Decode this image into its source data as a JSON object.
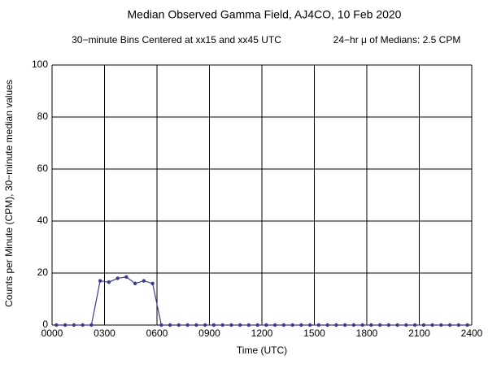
{
  "chart_data": {
    "type": "line",
    "title": "Median Observed Gamma Field, AJ4CO, 10 Feb 2020",
    "subtitle": "30−minute Bins Centered at xx15 and xx45 UTC",
    "annotation": "24−hr μ of Medians: 2.5 CPM",
    "x_label": "Time (UTC)",
    "y_label": "Counts per Minute (CPM), 30−minute median values",
    "x": [
      0.25,
      0.75,
      1.25,
      1.75,
      2.25,
      2.75,
      3.25,
      3.75,
      4.25,
      4.75,
      5.25,
      5.75,
      6.25,
      6.75,
      7.25,
      7.75,
      8.25,
      8.75,
      9.25,
      9.75,
      10.25,
      10.75,
      11.25,
      11.75,
      12.25,
      12.75,
      13.25,
      13.75,
      14.25,
      14.75,
      15.25,
      15.75,
      16.25,
      16.75,
      17.25,
      17.75,
      18.25,
      18.75,
      19.25,
      19.75,
      20.25,
      20.75,
      21.25,
      21.75,
      22.25,
      22.75,
      23.25,
      23.75
    ],
    "values": [
      0,
      0,
      0,
      0,
      0,
      17,
      16.5,
      18,
      18.5,
      16,
      17,
      16,
      0,
      0,
      0,
      0,
      0,
      0,
      0,
      0,
      0,
      0,
      0,
      0,
      0,
      0,
      0,
      0,
      0,
      0,
      0,
      0,
      0,
      0,
      0,
      0,
      0,
      0,
      0,
      0,
      0,
      0,
      0,
      0,
      0,
      0,
      0,
      0
    ],
    "color": "#3b3b8f",
    "xlim": [
      0,
      24
    ],
    "xticks": [
      {
        "value": 0,
        "label": "0000"
      },
      {
        "value": 3,
        "label": "0300"
      },
      {
        "value": 6,
        "label": "0600"
      },
      {
        "value": 9,
        "label": "0900"
      },
      {
        "value": 12,
        "label": "1200"
      },
      {
        "value": 15,
        "label": "1500"
      },
      {
        "value": 18,
        "label": "1800"
      },
      {
        "value": 21,
        "label": "2100"
      },
      {
        "value": 24,
        "label": "2400"
      }
    ],
    "ylim": [
      0,
      100
    ],
    "yticks": [
      0,
      20,
      40,
      60,
      80,
      100
    ],
    "grid": true
  }
}
